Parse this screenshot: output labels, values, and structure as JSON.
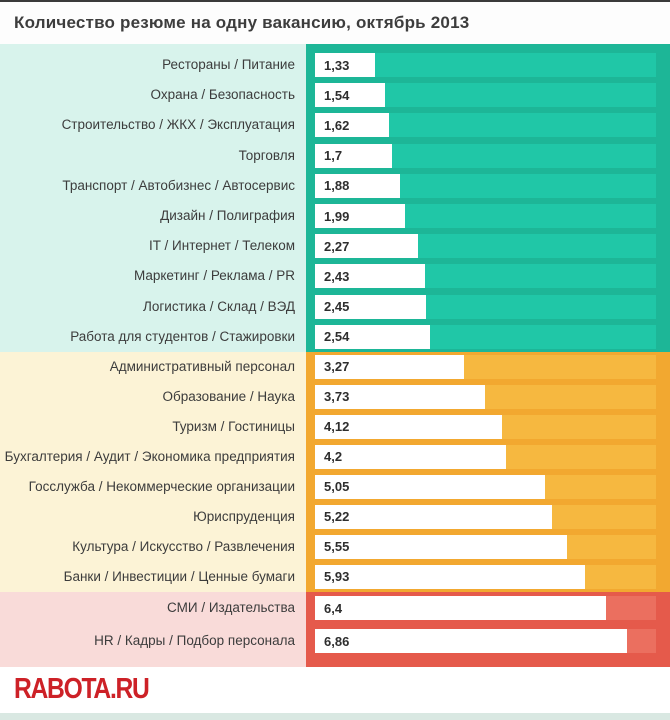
{
  "title": "Количество резюме на одну вакансию, октябрь 2013",
  "footer": {
    "logo_text": "RABOTA.RU"
  },
  "chart_data": {
    "type": "bar",
    "orientation": "horizontal",
    "title": "Количество резюме на одну вакансию, октябрь 2013",
    "value_unit": "резюме на вакансию",
    "xlim": [
      0,
      7.5
    ],
    "grid": false,
    "legend": false,
    "groups": [
      {
        "name": "green-low",
        "colors": {
          "label_bg": "#d8f3ec",
          "panel": "#1db697",
          "track": "#20c7a7",
          "bar": "#ffffff"
        },
        "rows": [
          {
            "label": "Рестораны / Питание",
            "value": 1.33,
            "value_label": "1,33"
          },
          {
            "label": "Охрана / Безопасность",
            "value": 1.54,
            "value_label": "1,54"
          },
          {
            "label": "Строительство / ЖКХ / Эксплуатация",
            "value": 1.62,
            "value_label": "1,62"
          },
          {
            "label": "Торговля",
            "value": 1.7,
            "value_label": "1,7"
          },
          {
            "label": "Транспорт / Автобизнес / Автосервис",
            "value": 1.88,
            "value_label": "1,88"
          },
          {
            "label": "Дизайн / Полиграфия",
            "value": 1.99,
            "value_label": "1,99"
          },
          {
            "label": "IT / Интернет / Телеком",
            "value": 2.27,
            "value_label": "2,27"
          },
          {
            "label": "Маркетинг / Реклама / PR",
            "value": 2.43,
            "value_label": "2,43"
          },
          {
            "label": "Логистика / Склад / ВЭД",
            "value": 2.45,
            "value_label": "2,45"
          },
          {
            "label": "Работа для студентов / Стажировки",
            "value": 2.54,
            "value_label": "2,54"
          }
        ]
      },
      {
        "name": "orange-mid",
        "colors": {
          "label_bg": "#fcf3d6",
          "panel": "#f2a830",
          "track": "#f6b840",
          "bar": "#ffffff"
        },
        "rows": [
          {
            "label": "Административный персонал",
            "value": 3.27,
            "value_label": "3,27"
          },
          {
            "label": "Образование / Наука",
            "value": 3.73,
            "value_label": "3,73"
          },
          {
            "label": "Туризм / Гостиницы",
            "value": 4.12,
            "value_label": "4,12"
          },
          {
            "label": "Бухгалтерия / Аудит / Экономика предприятия",
            "value": 4.2,
            "value_label": "4,2"
          },
          {
            "label": "Госслужба / Некоммерческие организации",
            "value": 5.05,
            "value_label": "5,05"
          },
          {
            "label": "Юриспруденция",
            "value": 5.22,
            "value_label": "5,22"
          },
          {
            "label": "Культура / Искусство / Развлечения",
            "value": 5.55,
            "value_label": "5,55"
          },
          {
            "label": "Банки / Инвестиции / Ценные бумаги",
            "value": 5.93,
            "value_label": "5,93"
          }
        ]
      },
      {
        "name": "red-high",
        "colors": {
          "label_bg": "#f9dbd9",
          "panel": "#e55a4b",
          "track": "#eb6f5f",
          "bar": "#ffffff"
        },
        "rows": [
          {
            "label": "СМИ / Издательства",
            "value": 6.4,
            "value_label": "6,4"
          },
          {
            "label": "HR / Кадры / Подбор персонала",
            "value": 6.86,
            "value_label": "6,86"
          }
        ]
      }
    ]
  }
}
